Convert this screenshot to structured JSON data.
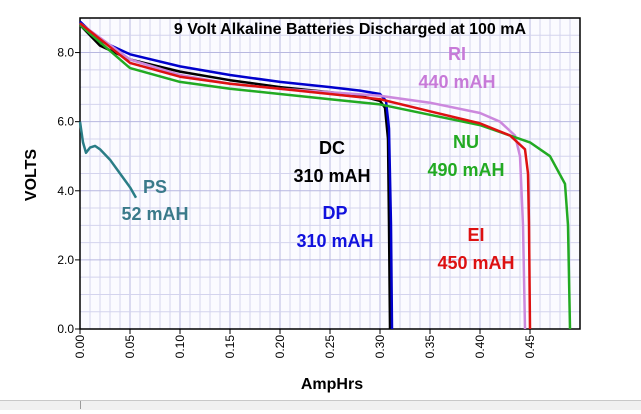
{
  "chart_data": {
    "type": "line",
    "title": "9 Volt Alkaline Batteries Discharged at 100 mA",
    "xlabel": "AmpHrs",
    "ylabel": "VOLTS",
    "xlim": [
      0,
      0.5
    ],
    "ylim": [
      0,
      9
    ],
    "xticks": [
      "0.00",
      "0.05",
      "0.10",
      "0.15",
      "0.20",
      "0.25",
      "0.30",
      "0.35",
      "0.40",
      "0.45"
    ],
    "yticks": [
      "0.0",
      "2.0",
      "4.0",
      "6.0",
      "8.0"
    ],
    "grid": true,
    "series": [
      {
        "name": "PS",
        "capacity": "52 mAH",
        "color": "#2a7d86",
        "label_color": "#3a7a8a",
        "points": [
          [
            0,
            6.0
          ],
          [
            0.003,
            5.4
          ],
          [
            0.006,
            5.1
          ],
          [
            0.01,
            5.25
          ],
          [
            0.015,
            5.3
          ],
          [
            0.02,
            5.2
          ],
          [
            0.03,
            4.9
          ],
          [
            0.04,
            4.5
          ],
          [
            0.05,
            4.1
          ],
          [
            0.056,
            3.8
          ]
        ]
      },
      {
        "name": "DC",
        "capacity": "310 mAH",
        "color": "#000000",
        "label_color": "#000000",
        "points": [
          [
            0,
            8.8
          ],
          [
            0.02,
            8.2
          ],
          [
            0.05,
            7.8
          ],
          [
            0.1,
            7.45
          ],
          [
            0.15,
            7.2
          ],
          [
            0.2,
            7.0
          ],
          [
            0.25,
            6.85
          ],
          [
            0.28,
            6.75
          ],
          [
            0.3,
            6.6
          ],
          [
            0.305,
            6.4
          ],
          [
            0.308,
            5.5
          ],
          [
            0.309,
            3.0
          ],
          [
            0.31,
            0.0
          ]
        ]
      },
      {
        "name": "DP",
        "capacity": "310 mAH",
        "color": "#0000cc",
        "label_color": "#1111dd",
        "points": [
          [
            0,
            8.9
          ],
          [
            0.02,
            8.35
          ],
          [
            0.05,
            7.95
          ],
          [
            0.1,
            7.6
          ],
          [
            0.15,
            7.35
          ],
          [
            0.2,
            7.15
          ],
          [
            0.25,
            7.0
          ],
          [
            0.28,
            6.9
          ],
          [
            0.3,
            6.8
          ],
          [
            0.306,
            6.6
          ],
          [
            0.309,
            5.8
          ],
          [
            0.311,
            3.0
          ],
          [
            0.312,
            0.0
          ]
        ]
      },
      {
        "name": "RI",
        "capacity": "440 mAH",
        "color": "#cc88dd",
        "label_color": "#c77ad8",
        "points": [
          [
            0,
            8.85
          ],
          [
            0.05,
            7.8
          ],
          [
            0.1,
            7.35
          ],
          [
            0.15,
            7.1
          ],
          [
            0.2,
            6.95
          ],
          [
            0.25,
            6.85
          ],
          [
            0.3,
            6.75
          ],
          [
            0.35,
            6.55
          ],
          [
            0.4,
            6.25
          ],
          [
            0.42,
            6.0
          ],
          [
            0.435,
            5.6
          ],
          [
            0.44,
            5.0
          ],
          [
            0.443,
            3.0
          ],
          [
            0.445,
            0.0
          ]
        ]
      },
      {
        "name": "NU",
        "capacity": "490 mAH",
        "color": "#22aa22",
        "label_color": "#22aa22",
        "points": [
          [
            0,
            8.8
          ],
          [
            0.05,
            7.55
          ],
          [
            0.1,
            7.15
          ],
          [
            0.15,
            6.95
          ],
          [
            0.2,
            6.8
          ],
          [
            0.25,
            6.65
          ],
          [
            0.3,
            6.5
          ],
          [
            0.35,
            6.2
          ],
          [
            0.4,
            5.9
          ],
          [
            0.45,
            5.4
          ],
          [
            0.47,
            5.0
          ],
          [
            0.485,
            4.2
          ],
          [
            0.488,
            3.0
          ],
          [
            0.49,
            0.0
          ]
        ]
      },
      {
        "name": "EI",
        "capacity": "450 mAH",
        "color": "#dd1111",
        "label_color": "#dd1111",
        "points": [
          [
            0,
            8.85
          ],
          [
            0.05,
            7.7
          ],
          [
            0.1,
            7.3
          ],
          [
            0.15,
            7.1
          ],
          [
            0.2,
            6.95
          ],
          [
            0.25,
            6.8
          ],
          [
            0.3,
            6.65
          ],
          [
            0.35,
            6.3
          ],
          [
            0.4,
            5.95
          ],
          [
            0.43,
            5.6
          ],
          [
            0.445,
            5.2
          ],
          [
            0.448,
            4.5
          ],
          [
            0.449,
            3.0
          ],
          [
            0.45,
            0.0
          ]
        ]
      }
    ]
  }
}
